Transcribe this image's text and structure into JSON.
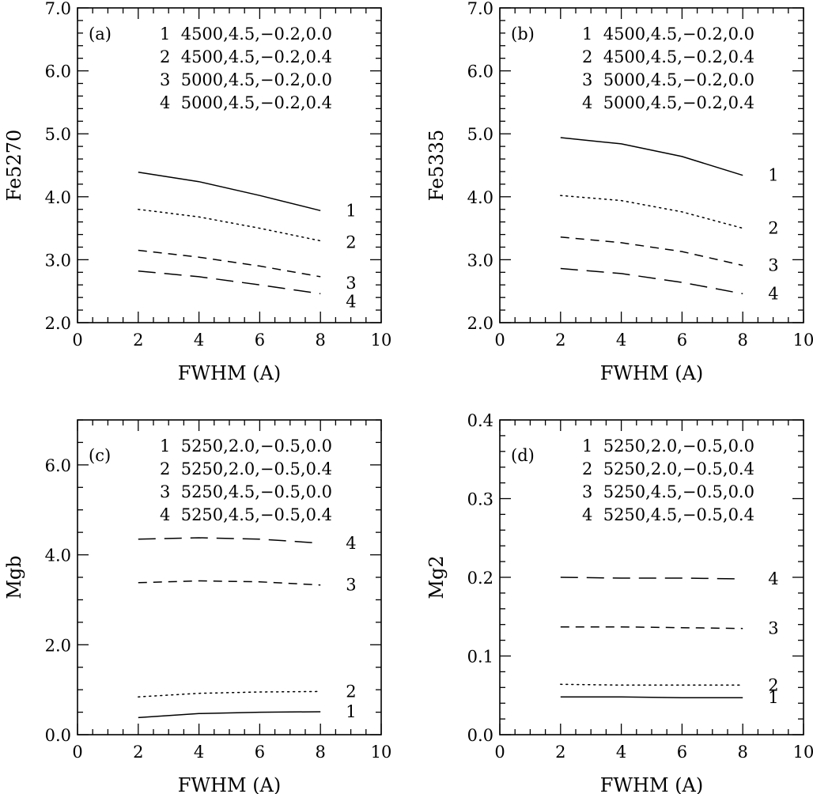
{
  "chart_data": [
    {
      "type": "line",
      "panel_label": "(a)",
      "xlabel": "FWHM (A)",
      "ylabel": "Fe5270",
      "xlim": [
        0,
        10
      ],
      "ylim": [
        2.0,
        7.0
      ],
      "x_ticks": [
        "0",
        "2",
        "4",
        "6",
        "8",
        "10"
      ],
      "y_ticks": [
        "2.0",
        "3.0",
        "4.0",
        "5.0",
        "6.0",
        "7.0"
      ],
      "legend": [
        "1  4500,4.5,−0.2,0.0",
        "2  4500,4.5,−0.2,0.4",
        "3  5000,4.5,−0.2,0.0",
        "4  5000,4.5,−0.2,0.4"
      ],
      "legend_placement": "top-right",
      "x": [
        2,
        4,
        6,
        8
      ],
      "series": [
        {
          "label": "1",
          "line_style": "solid",
          "values": [
            4.39,
            4.24,
            4.02,
            3.78
          ]
        },
        {
          "label": "2",
          "line_style": "dotted",
          "values": [
            3.8,
            3.68,
            3.5,
            3.3
          ]
        },
        {
          "label": "3",
          "line_style": "dashed",
          "values": [
            3.15,
            3.04,
            2.9,
            2.73
          ]
        },
        {
          "label": "4",
          "line_style": "long-dashed",
          "values": [
            2.82,
            2.73,
            2.6,
            2.46
          ]
        }
      ]
    },
    {
      "type": "line",
      "panel_label": "(b)",
      "xlabel": "FWHM (A)",
      "ylabel": "Fe5335",
      "xlim": [
        0,
        10
      ],
      "ylim": [
        2.0,
        7.0
      ],
      "x_ticks": [
        "0",
        "2",
        "4",
        "6",
        "8",
        "10"
      ],
      "y_ticks": [
        "2.0",
        "3.0",
        "4.0",
        "5.0",
        "6.0",
        "7.0"
      ],
      "legend": [
        "1  4500,4.5,−0.2,0.0",
        "2  4500,4.5,−0.2,0.4",
        "3  5000,4.5,−0.2,0.0",
        "4  5000,4.5,−0.2,0.4"
      ],
      "legend_placement": "top-right",
      "x": [
        2,
        4,
        6,
        8
      ],
      "series": [
        {
          "label": "1",
          "line_style": "solid",
          "values": [
            4.94,
            4.84,
            4.64,
            4.34
          ]
        },
        {
          "label": "2",
          "line_style": "dotted",
          "values": [
            4.02,
            3.94,
            3.76,
            3.5
          ]
        },
        {
          "label": "3",
          "line_style": "dashed",
          "values": [
            3.36,
            3.27,
            3.13,
            2.91
          ]
        },
        {
          "label": "4",
          "line_style": "long-dashed",
          "values": [
            2.86,
            2.78,
            2.64,
            2.46
          ]
        }
      ]
    },
    {
      "type": "line",
      "panel_label": "(c)",
      "xlabel": "FWHM (A)",
      "ylabel": "Mgb",
      "xlim": [
        0,
        10
      ],
      "ylim": [
        0.0,
        7.0
      ],
      "x_ticks": [
        "0",
        "2",
        "4",
        "6",
        "8",
        "10"
      ],
      "y_ticks": [
        "0.0",
        "2.0",
        "4.0",
        "6.0"
      ],
      "legend": [
        "1  5250,2.0,−0.5,0.0",
        "2  5250,2.0,−0.5,0.4",
        "3  5250,4.5,−0.5,0.0",
        "4  5250,4.5,−0.5,0.4"
      ],
      "legend_placement": "top-right",
      "x": [
        2,
        4,
        6,
        8
      ],
      "series": [
        {
          "label": "1",
          "line_style": "solid",
          "values": [
            0.38,
            0.47,
            0.5,
            0.51
          ]
        },
        {
          "label": "2",
          "line_style": "dotted",
          "values": [
            0.84,
            0.92,
            0.95,
            0.96
          ]
        },
        {
          "label": "3",
          "line_style": "dashed",
          "values": [
            3.38,
            3.42,
            3.4,
            3.33
          ]
        },
        {
          "label": "4",
          "line_style": "long-dashed",
          "values": [
            4.35,
            4.38,
            4.35,
            4.26
          ]
        }
      ]
    },
    {
      "type": "line",
      "panel_label": "(d)",
      "xlabel": "FWHM (A)",
      "ylabel": "Mg2",
      "xlim": [
        0,
        10
      ],
      "ylim": [
        0.0,
        0.4
      ],
      "x_ticks": [
        "0",
        "2",
        "4",
        "6",
        "8",
        "10"
      ],
      "y_ticks": [
        "0.0",
        "0.1",
        "0.2",
        "0.3",
        "0.4"
      ],
      "legend": [
        "1  5250,2.0,−0.5,0.0",
        "2  5250,2.0,−0.5,0.4",
        "3  5250,4.5,−0.5,0.0",
        "4  5250,4.5,−0.5,0.4"
      ],
      "legend_placement": "top-right",
      "x": [
        2,
        4,
        6,
        8
      ],
      "series": [
        {
          "label": "1",
          "line_style": "solid",
          "values": [
            0.048,
            0.048,
            0.047,
            0.047
          ]
        },
        {
          "label": "2",
          "line_style": "dotted",
          "values": [
            0.064,
            0.063,
            0.063,
            0.063
          ]
        },
        {
          "label": "3",
          "line_style": "dashed",
          "values": [
            0.137,
            0.137,
            0.136,
            0.135
          ]
        },
        {
          "label": "4",
          "line_style": "long-dashed",
          "values": [
            0.2,
            0.199,
            0.199,
            0.198
          ]
        }
      ]
    }
  ]
}
